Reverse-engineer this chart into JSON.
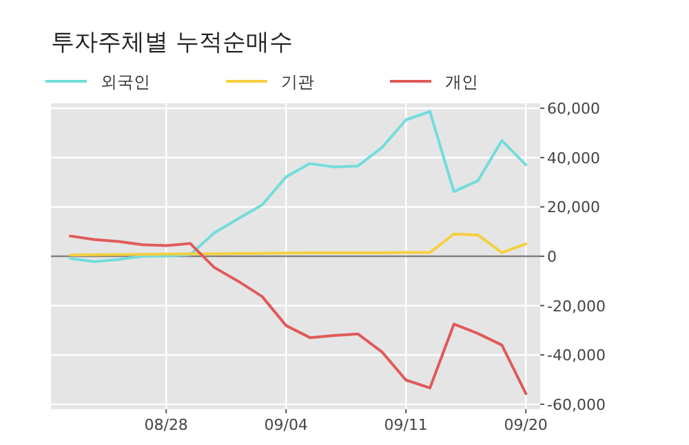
{
  "chart_data": {
    "type": "line",
    "title": "투자주체별 누적순매수",
    "categories": [
      null,
      null,
      null,
      null,
      "08/28",
      null,
      null,
      null,
      null,
      "09/04",
      null,
      null,
      null,
      null,
      "09/11",
      null,
      null,
      null,
      null,
      "09/20"
    ],
    "series": [
      {
        "name": "외국인",
        "color": "#72dcdc",
        "values": [
          -900,
          -2200,
          -1300,
          0,
          200,
          600,
          9400,
          15200,
          20800,
          32200,
          37600,
          36200,
          36600,
          44100,
          55300,
          58700,
          26200,
          30600,
          46900,
          37100
        ]
      },
      {
        "name": "기관",
        "color": "#f5cf3f",
        "values": [
          500,
          600,
          700,
          800,
          900,
          1000,
          1000,
          1100,
          1200,
          1300,
          1400,
          1400,
          1400,
          1400,
          1500,
          1500,
          9000,
          8600,
          1500,
          5000
        ]
      },
      {
        "name": "개인",
        "color": "#e05a5a",
        "values": [
          8200,
          6800,
          6000,
          4700,
          4300,
          5200,
          -4500,
          -10100,
          -16300,
          -28100,
          -33000,
          -32100,
          -31500,
          -38800,
          -50200,
          -53400,
          -27500,
          -31300,
          -36000,
          -55700
        ]
      }
    ],
    "ylim": [
      -62000,
      62000
    ],
    "yticks": [
      {
        "value": -60000,
        "label": "-60,000"
      },
      {
        "value": -40000,
        "label": "-40,000"
      },
      {
        "value": -20000,
        "label": "-20,000"
      },
      {
        "value": 0,
        "label": "0"
      },
      {
        "value": 20000,
        "label": "20,000"
      },
      {
        "value": 40000,
        "label": "40,000"
      },
      {
        "value": 60000,
        "label": "60,000"
      }
    ],
    "ref_lines": [
      {
        "axis": "y",
        "value": 0,
        "color": "#808080"
      }
    ],
    "grid": true,
    "legend": "top left",
    "marker": "none",
    "line_style": "solid"
  }
}
